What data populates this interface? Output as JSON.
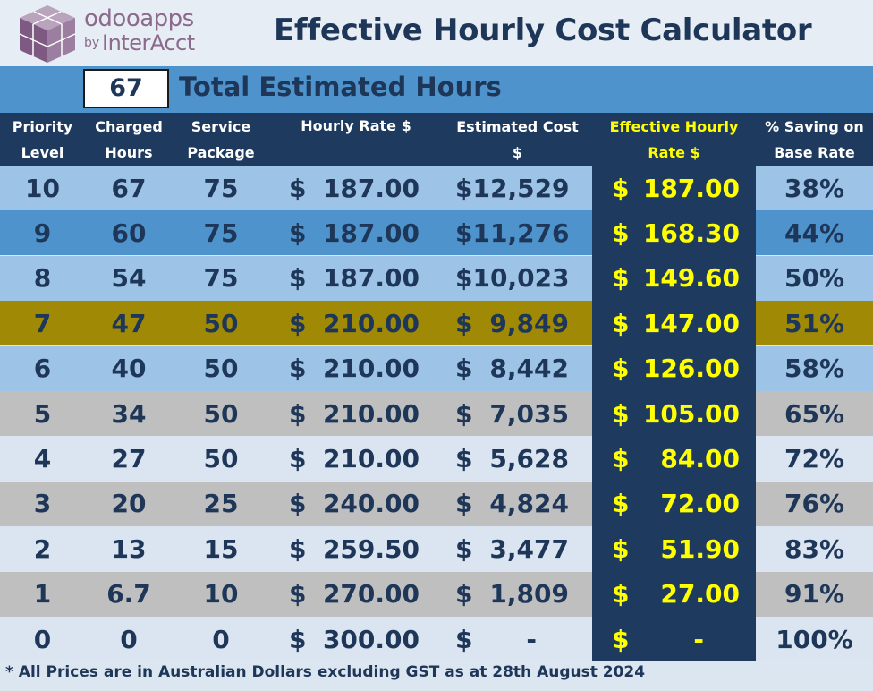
{
  "header": {
    "logo_top": "odooapps",
    "logo_by": "by",
    "logo_brand": "InterAcct",
    "title": "Effective Hourly Cost Calculator"
  },
  "hours": {
    "value": "67",
    "label": "Total Estimated Hours"
  },
  "columns": [
    [
      "Priority",
      "Level"
    ],
    [
      "Charged",
      "Hours"
    ],
    [
      "Service",
      "Package"
    ],
    [
      "Hourly Rate $",
      ""
    ],
    [
      "Estimated Cost",
      "$"
    ],
    [
      "Effective Hourly",
      "Rate $"
    ],
    [
      "% Saving on",
      "Base Rate"
    ]
  ],
  "rows": [
    {
      "level": "10",
      "hours": "67",
      "package": "75",
      "rate": "187.00",
      "cost": "12,529",
      "effective": "187.00",
      "saving": "38%",
      "bg": "#9dc3e6"
    },
    {
      "level": "9",
      "hours": "60",
      "package": "75",
      "rate": "187.00",
      "cost": "11,276",
      "effective": "168.30",
      "saving": "44%",
      "bg": "#4f93cd"
    },
    {
      "level": "8",
      "hours": "54",
      "package": "75",
      "rate": "187.00",
      "cost": "10,023",
      "effective": "149.60",
      "saving": "50%",
      "bg": "#9dc3e6"
    },
    {
      "level": "7",
      "hours": "47",
      "package": "50",
      "rate": "210.00",
      "cost": "9,849",
      "effective": "147.00",
      "saving": "51%",
      "bg": "#a08a05"
    },
    {
      "level": "6",
      "hours": "40",
      "package": "50",
      "rate": "210.00",
      "cost": "8,442",
      "effective": "126.00",
      "saving": "58%",
      "bg": "#9dc3e6"
    },
    {
      "level": "5",
      "hours": "34",
      "package": "50",
      "rate": "210.00",
      "cost": "7,035",
      "effective": "105.00",
      "saving": "65%",
      "bg": "#bfbfbf"
    },
    {
      "level": "4",
      "hours": "27",
      "package": "50",
      "rate": "210.00",
      "cost": "5,628",
      "effective": "84.00",
      "saving": "72%",
      "bg": "#dbe5f1"
    },
    {
      "level": "3",
      "hours": "20",
      "package": "25",
      "rate": "240.00",
      "cost": "4,824",
      "effective": "72.00",
      "saving": "76%",
      "bg": "#bfbfbf"
    },
    {
      "level": "2",
      "hours": "13",
      "package": "15",
      "rate": "259.50",
      "cost": "3,477",
      "effective": "51.90",
      "saving": "83%",
      "bg": "#dbe5f1"
    },
    {
      "level": "1",
      "hours": "6.7",
      "package": "10",
      "rate": "270.00",
      "cost": "1,809",
      "effective": "27.00",
      "saving": "91%",
      "bg": "#bfbfbf"
    },
    {
      "level": "0",
      "hours": "0",
      "package": "0",
      "rate": "300.00",
      "cost": "-",
      "effective": "-",
      "saving": "100%",
      "bg": "#dbe5f1"
    }
  ],
  "currency_symbol": "$",
  "footer": "* All Prices are in Australian Dollars excluding GST as at 28th August 2024",
  "colors": {
    "navy": "#1e3a5f",
    "text_navy": "#1e3658",
    "highlight_yellow": "#ffff00",
    "bar_blue": "#4f93cd",
    "gold_row": "#a08a05"
  }
}
